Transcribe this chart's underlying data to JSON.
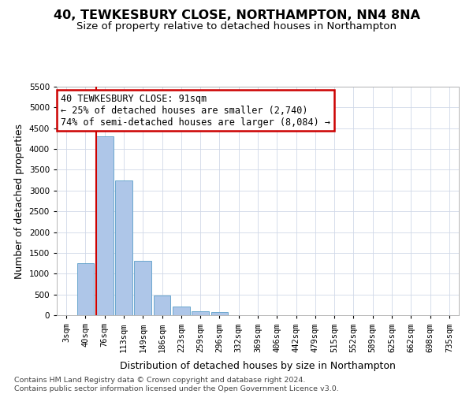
{
  "title": "40, TEWKESBURY CLOSE, NORTHAMPTON, NN4 8NA",
  "subtitle": "Size of property relative to detached houses in Northampton",
  "xlabel": "Distribution of detached houses by size in Northampton",
  "ylabel": "Number of detached properties",
  "categories": [
    "3sqm",
    "40sqm",
    "76sqm",
    "113sqm",
    "149sqm",
    "186sqm",
    "223sqm",
    "259sqm",
    "296sqm",
    "332sqm",
    "369sqm",
    "406sqm",
    "442sqm",
    "479sqm",
    "515sqm",
    "552sqm",
    "589sqm",
    "625sqm",
    "662sqm",
    "698sqm",
    "735sqm"
  ],
  "values": [
    0,
    1250,
    4300,
    3250,
    1300,
    480,
    200,
    100,
    70,
    0,
    0,
    0,
    0,
    0,
    0,
    0,
    0,
    0,
    0,
    0,
    0
  ],
  "bar_color": "#aec6e8",
  "bar_edgecolor": "#5a9fc8",
  "redline_color": "#cc0000",
  "redline_index": 2,
  "annotation_line1": "40 TEWKESBURY CLOSE: 91sqm",
  "annotation_line2": "← 25% of detached houses are smaller (2,740)",
  "annotation_line3": "74% of semi-detached houses are larger (8,084) →",
  "annotation_box_facecolor": "#ffffff",
  "annotation_box_edgecolor": "#cc0000",
  "ylim": [
    0,
    5500
  ],
  "yticks": [
    0,
    500,
    1000,
    1500,
    2000,
    2500,
    3000,
    3500,
    4000,
    4500,
    5000,
    5500
  ],
  "footer_line1": "Contains HM Land Registry data © Crown copyright and database right 2024.",
  "footer_line2": "Contains public sector information licensed under the Open Government Licence v3.0.",
  "background_color": "#ffffff",
  "grid_color": "#d0d8e8",
  "title_fontsize": 11.5,
  "subtitle_fontsize": 9.5,
  "axis_label_fontsize": 9,
  "tick_fontsize": 7.5,
  "footer_fontsize": 6.8,
  "annotation_fontsize": 8.5
}
